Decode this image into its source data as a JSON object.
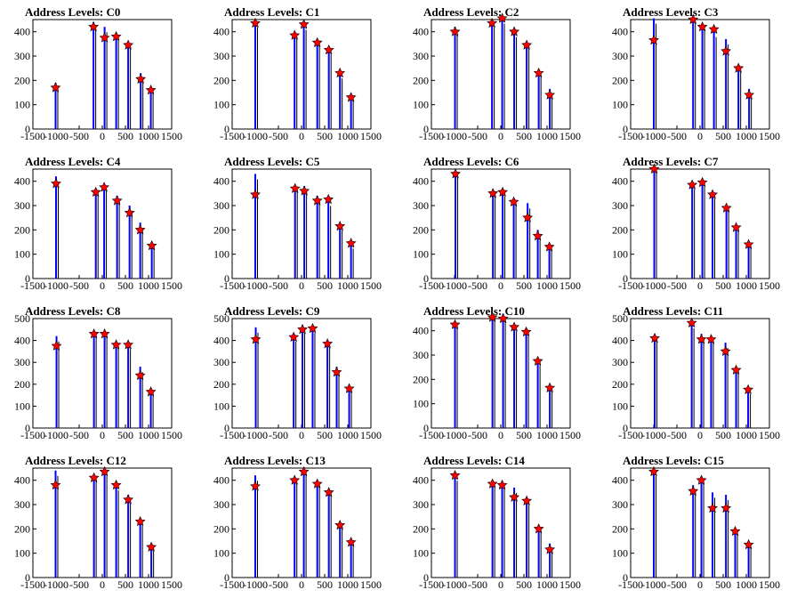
{
  "chart_data": [
    {
      "type": "bar",
      "title": "Address Levels: C0",
      "xlim": [
        -1500,
        1500
      ],
      "ylim": [
        0,
        450
      ],
      "xticks": [
        -1500,
        -1000,
        -500,
        0,
        500,
        1000,
        1500
      ],
      "yticks": [
        0,
        100,
        200,
        300,
        400
      ],
      "bars": [
        [
          -1010,
          190
        ],
        [
          -190,
          440
        ],
        [
          50,
          420
        ],
        [
          300,
          385
        ],
        [
          560,
          360
        ],
        [
          830,
          230
        ],
        [
          1050,
          170
        ]
      ],
      "markers": [
        [
          -1010,
          170
        ],
        [
          -190,
          420
        ],
        [
          50,
          375
        ],
        [
          300,
          380
        ],
        [
          560,
          345
        ],
        [
          830,
          205
        ],
        [
          1050,
          160
        ]
      ]
    },
    {
      "type": "bar",
      "title": "Address Levels: C1",
      "xlim": [
        -1500,
        1500
      ],
      "ylim": [
        0,
        450
      ],
      "xticks": [
        -1500,
        -1000,
        -500,
        0,
        500,
        1000,
        1500
      ],
      "yticks": [
        0,
        100,
        200,
        300,
        400
      ],
      "bars": [
        [
          -1000,
          440
        ],
        [
          -150,
          400
        ],
        [
          50,
          430
        ],
        [
          340,
          370
        ],
        [
          590,
          330
        ],
        [
          830,
          230
        ],
        [
          1070,
          145
        ]
      ],
      "markers": [
        [
          -1000,
          435
        ],
        [
          -150,
          385
        ],
        [
          50,
          430
        ],
        [
          340,
          355
        ],
        [
          590,
          325
        ],
        [
          830,
          230
        ],
        [
          1070,
          130
        ]
      ]
    },
    {
      "type": "bar",
      "title": "Address Levels: C2",
      "xlim": [
        -1500,
        1500
      ],
      "ylim": [
        0,
        450
      ],
      "xticks": [
        -1500,
        -1000,
        -500,
        0,
        500,
        1000,
        1500
      ],
      "yticks": [
        0,
        100,
        200,
        300,
        400
      ],
      "bars": [
        [
          -990,
          420
        ],
        [
          -190,
          440
        ],
        [
          30,
          455
        ],
        [
          290,
          400
        ],
        [
          560,
          360
        ],
        [
          820,
          240
        ],
        [
          1060,
          165
        ]
      ],
      "markers": [
        [
          -990,
          400
        ],
        [
          -190,
          435
        ],
        [
          30,
          455
        ],
        [
          290,
          400
        ],
        [
          560,
          345
        ],
        [
          820,
          230
        ],
        [
          1060,
          140
        ]
      ]
    },
    {
      "type": "bar",
      "title": "Address Levels: C3",
      "xlim": [
        -1500,
        1500
      ],
      "ylim": [
        0,
        450
      ],
      "xticks": [
        -1500,
        -1000,
        -500,
        0,
        500,
        1000,
        1500
      ],
      "yticks": [
        0,
        100,
        200,
        300,
        400
      ],
      "bars": [
        [
          -1000,
          455
        ],
        [
          -150,
          460
        ],
        [
          50,
          430
        ],
        [
          300,
          400
        ],
        [
          560,
          370
        ],
        [
          830,
          260
        ],
        [
          1060,
          165
        ]
      ],
      "markers": [
        [
          -1000,
          365
        ],
        [
          -150,
          450
        ],
        [
          50,
          420
        ],
        [
          300,
          410
        ],
        [
          560,
          320
        ],
        [
          830,
          250
        ],
        [
          1060,
          140
        ]
      ]
    },
    {
      "type": "bar",
      "title": "Address Levels: C4",
      "xlim": [
        -1500,
        1500
      ],
      "ylim": [
        0,
        450
      ],
      "xticks": [
        -1500,
        -1000,
        -500,
        0,
        500,
        1000,
        1500
      ],
      "yticks": [
        0,
        100,
        200,
        300,
        400
      ],
      "bars": [
        [
          -1000,
          420
        ],
        [
          -140,
          370
        ],
        [
          40,
          390
        ],
        [
          320,
          340
        ],
        [
          590,
          300
        ],
        [
          820,
          230
        ],
        [
          1070,
          150
        ]
      ],
      "markers": [
        [
          -1000,
          390
        ],
        [
          -140,
          355
        ],
        [
          40,
          375
        ],
        [
          320,
          320
        ],
        [
          590,
          270
        ],
        [
          820,
          200
        ],
        [
          1070,
          135
        ]
      ]
    },
    {
      "type": "bar",
      "title": "Address Levels: C5",
      "xlim": [
        -1500,
        1500
      ],
      "ylim": [
        0,
        450
      ],
      "xticks": [
        -1500,
        -1000,
        -500,
        0,
        500,
        1000,
        1500
      ],
      "yticks": [
        0,
        100,
        200,
        300,
        400
      ],
      "bars": [
        [
          -1000,
          430
        ],
        [
          -140,
          380
        ],
        [
          60,
          380
        ],
        [
          340,
          340
        ],
        [
          580,
          320
        ],
        [
          830,
          220
        ],
        [
          1070,
          145
        ]
      ],
      "markers": [
        [
          -1000,
          345
        ],
        [
          -140,
          370
        ],
        [
          60,
          360
        ],
        [
          340,
          320
        ],
        [
          580,
          325
        ],
        [
          830,
          215
        ],
        [
          1070,
          145
        ]
      ]
    },
    {
      "type": "bar",
      "title": "Address Levels: C6",
      "xlim": [
        -1500,
        1500
      ],
      "ylim": [
        0,
        450
      ],
      "xticks": [
        -1500,
        -1000,
        -500,
        0,
        500,
        1000,
        1500
      ],
      "yticks": [
        0,
        100,
        200,
        300,
        400
      ],
      "bars": [
        [
          -980,
          440
        ],
        [
          -170,
          365
        ],
        [
          40,
          360
        ],
        [
          280,
          330
        ],
        [
          580,
          310
        ],
        [
          800,
          200
        ],
        [
          1050,
          140
        ]
      ],
      "markers": [
        [
          -980,
          430
        ],
        [
          -170,
          350
        ],
        [
          40,
          355
        ],
        [
          280,
          315
        ],
        [
          580,
          250
        ],
        [
          800,
          175
        ],
        [
          1050,
          130
        ]
      ]
    },
    {
      "type": "bar",
      "title": "Address Levels: C7",
      "xlim": [
        -1500,
        1500
      ],
      "ylim": [
        0,
        450
      ],
      "xticks": [
        -1500,
        -1000,
        -500,
        0,
        500,
        1000,
        1500
      ],
      "yticks": [
        0,
        100,
        200,
        300,
        400
      ],
      "bars": [
        [
          -990,
          460
        ],
        [
          -170,
          390
        ],
        [
          50,
          400
        ],
        [
          270,
          350
        ],
        [
          570,
          300
        ],
        [
          780,
          220
        ],
        [
          1050,
          150
        ]
      ],
      "markers": [
        [
          -990,
          450
        ],
        [
          -170,
          385
        ],
        [
          50,
          395
        ],
        [
          270,
          345
        ],
        [
          570,
          290
        ],
        [
          780,
          210
        ],
        [
          1050,
          140
        ]
      ]
    },
    {
      "type": "bar",
      "title": "Address Levels: C8",
      "xlim": [
        -1500,
        1500
      ],
      "ylim": [
        0,
        500
      ],
      "xticks": [
        -1500,
        -1000,
        -500,
        0,
        500,
        1000,
        1500
      ],
      "yticks": [
        0,
        100,
        200,
        300,
        400,
        500
      ],
      "bars": [
        [
          -990,
          420
        ],
        [
          -180,
          440
        ],
        [
          50,
          440
        ],
        [
          300,
          390
        ],
        [
          560,
          385
        ],
        [
          820,
          280
        ],
        [
          1050,
          180
        ]
      ],
      "markers": [
        [
          -990,
          375
        ],
        [
          -180,
          430
        ],
        [
          50,
          430
        ],
        [
          300,
          380
        ],
        [
          560,
          380
        ],
        [
          820,
          240
        ],
        [
          1050,
          165
        ]
      ]
    },
    {
      "type": "bar",
      "title": "Address Levels: C9",
      "xlim": [
        -1500,
        1500
      ],
      "ylim": [
        0,
        500
      ],
      "xticks": [
        -1500,
        -1000,
        -500,
        0,
        500,
        1000,
        1500
      ],
      "yticks": [
        0,
        100,
        200,
        300,
        400,
        500
      ],
      "bars": [
        [
          -990,
          460
        ],
        [
          -170,
          420
        ],
        [
          20,
          470
        ],
        [
          240,
          460
        ],
        [
          560,
          400
        ],
        [
          760,
          280
        ],
        [
          1030,
          190
        ]
      ],
      "markers": [
        [
          -990,
          405
        ],
        [
          -170,
          415
        ],
        [
          20,
          450
        ],
        [
          240,
          455
        ],
        [
          560,
          385
        ],
        [
          760,
          255
        ],
        [
          1030,
          180
        ]
      ]
    },
    {
      "type": "bar",
      "title": "Address Levels: C10",
      "xlim": [
        -1500,
        1500
      ],
      "ylim": [
        0,
        450
      ],
      "xticks": [
        -1500,
        -1000,
        -500,
        0,
        500,
        1000,
        1500
      ],
      "yticks": [
        0,
        100,
        200,
        300,
        400
      ],
      "bars": [
        [
          -990,
          440
        ],
        [
          -180,
          470
        ],
        [
          50,
          470
        ],
        [
          290,
          420
        ],
        [
          550,
          400
        ],
        [
          800,
          280
        ],
        [
          1060,
          175
        ]
      ],
      "markers": [
        [
          -990,
          425
        ],
        [
          -180,
          455
        ],
        [
          50,
          450
        ],
        [
          290,
          415
        ],
        [
          550,
          395
        ],
        [
          800,
          275
        ],
        [
          1060,
          165
        ]
      ]
    },
    {
      "type": "bar",
      "title": "Address Levels: C11",
      "xlim": [
        -1500,
        1500
      ],
      "ylim": [
        0,
        500
      ],
      "xticks": [
        -1500,
        -1000,
        -500,
        0,
        500,
        1000,
        1500
      ],
      "yticks": [
        0,
        100,
        200,
        300,
        400,
        500
      ],
      "bars": [
        [
          -980,
          420
        ],
        [
          -180,
          480
        ],
        [
          30,
          430
        ],
        [
          240,
          420
        ],
        [
          550,
          390
        ],
        [
          780,
          280
        ],
        [
          1040,
          180
        ]
      ],
      "markers": [
        [
          -980,
          410
        ],
        [
          -180,
          480
        ],
        [
          30,
          405
        ],
        [
          240,
          405
        ],
        [
          550,
          350
        ],
        [
          780,
          265
        ],
        [
          1040,
          175
        ]
      ]
    },
    {
      "type": "bar",
      "title": "Address Levels: C12",
      "xlim": [
        -1500,
        1500
      ],
      "ylim": [
        0,
        450
      ],
      "xticks": [
        -1500,
        -1000,
        -500,
        0,
        500,
        1000,
        1500
      ],
      "yticks": [
        0,
        100,
        200,
        300,
        400
      ],
      "bars": [
        [
          -1010,
          440
        ],
        [
          -180,
          420
        ],
        [
          50,
          440
        ],
        [
          300,
          380
        ],
        [
          560,
          340
        ],
        [
          820,
          235
        ],
        [
          1060,
          140
        ]
      ],
      "markers": [
        [
          -1010,
          380
        ],
        [
          -180,
          410
        ],
        [
          50,
          435
        ],
        [
          300,
          380
        ],
        [
          560,
          320
        ],
        [
          820,
          230
        ],
        [
          1060,
          125
        ]
      ]
    },
    {
      "type": "bar",
      "title": "Address Levels: C13",
      "xlim": [
        -1500,
        1500
      ],
      "ylim": [
        0,
        450
      ],
      "xticks": [
        -1500,
        -1000,
        -500,
        0,
        500,
        1000,
        1500
      ],
      "yticks": [
        0,
        100,
        200,
        300,
        400
      ],
      "bars": [
        [
          -1000,
          420
        ],
        [
          -150,
          410
        ],
        [
          50,
          450
        ],
        [
          340,
          400
        ],
        [
          590,
          360
        ],
        [
          830,
          230
        ],
        [
          1070,
          160
        ]
      ],
      "markers": [
        [
          -1000,
          375
        ],
        [
          -150,
          400
        ],
        [
          50,
          435
        ],
        [
          340,
          385
        ],
        [
          590,
          350
        ],
        [
          830,
          215
        ],
        [
          1070,
          145
        ]
      ]
    },
    {
      "type": "bar",
      "title": "Address Levels: C14",
      "xlim": [
        -1500,
        1500
      ],
      "ylim": [
        0,
        450
      ],
      "xticks": [
        -1500,
        -1000,
        -500,
        0,
        500,
        1000,
        1500
      ],
      "yticks": [
        0,
        100,
        200,
        300,
        400
      ],
      "bars": [
        [
          -990,
          420
        ],
        [
          -180,
          390
        ],
        [
          30,
          390
        ],
        [
          290,
          370
        ],
        [
          560,
          320
        ],
        [
          820,
          210
        ],
        [
          1060,
          140
        ]
      ],
      "markers": [
        [
          -990,
          420
        ],
        [
          -180,
          385
        ],
        [
          30,
          380
        ],
        [
          290,
          330
        ],
        [
          560,
          315
        ],
        [
          820,
          200
        ],
        [
          1060,
          115
        ]
      ]
    },
    {
      "type": "bar",
      "title": "Address Levels: C15",
      "xlim": [
        -1500,
        1500
      ],
      "ylim": [
        0,
        450
      ],
      "xticks": [
        -1500,
        -1000,
        -500,
        0,
        500,
        1000,
        1500
      ],
      "yticks": [
        0,
        100,
        200,
        300,
        400
      ],
      "bars": [
        [
          -1000,
          440
        ],
        [
          -150,
          380
        ],
        [
          30,
          410
        ],
        [
          270,
          350
        ],
        [
          560,
          340
        ],
        [
          760,
          200
        ],
        [
          1050,
          150
        ]
      ],
      "markers": [
        [
          -1000,
          435
        ],
        [
          -150,
          355
        ],
        [
          30,
          400
        ],
        [
          270,
          285
        ],
        [
          560,
          285
        ],
        [
          760,
          190
        ],
        [
          1050,
          135
        ]
      ]
    }
  ]
}
